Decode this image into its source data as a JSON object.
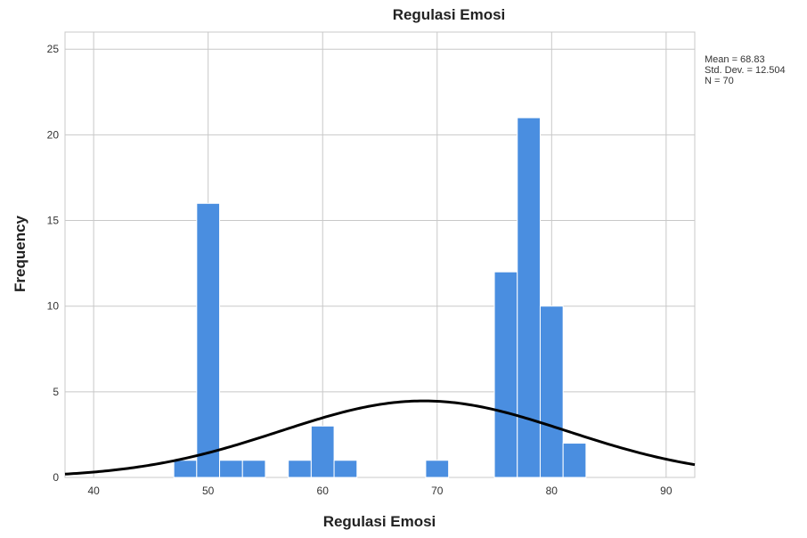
{
  "chart_data": {
    "type": "bar",
    "title": "Regulasi Emosi",
    "xlabel": "Regulasi Emosi",
    "ylabel": "Frequency",
    "xlim": [
      37.5,
      92.5
    ],
    "ylim": [
      0,
      26
    ],
    "xticks": [
      40,
      50,
      60,
      70,
      80,
      90
    ],
    "yticks": [
      0,
      5,
      10,
      15,
      20,
      25
    ],
    "grid": true,
    "bin_width": 2,
    "bins": [
      {
        "start": 47,
        "end": 49,
        "count": 1
      },
      {
        "start": 49,
        "end": 51,
        "count": 16
      },
      {
        "start": 51,
        "end": 53,
        "count": 1
      },
      {
        "start": 53,
        "end": 55,
        "count": 1
      },
      {
        "start": 57,
        "end": 59,
        "count": 1
      },
      {
        "start": 59,
        "end": 61,
        "count": 3
      },
      {
        "start": 61,
        "end": 63,
        "count": 1
      },
      {
        "start": 69,
        "end": 71,
        "count": 1
      },
      {
        "start": 75,
        "end": 77,
        "count": 12
      },
      {
        "start": 77,
        "end": 79,
        "count": 21
      },
      {
        "start": 79,
        "end": 81,
        "count": 10
      },
      {
        "start": 81,
        "end": 83,
        "count": 2
      }
    ],
    "normal_curve": {
      "mean": 68.83,
      "std": 12.504,
      "n": 70
    },
    "stats_text": [
      "Mean = 68.83",
      "Std. Dev. = 12.504",
      "N = 70"
    ],
    "bar_color": "#4a8ee0",
    "curve_color": "#000000"
  }
}
